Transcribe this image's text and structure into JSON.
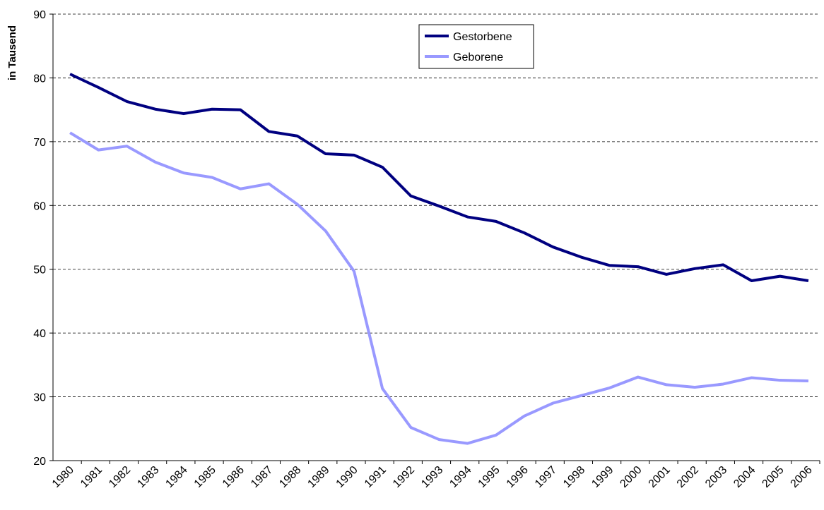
{
  "chart_data": {
    "type": "line",
    "ylabel": "in Tausend",
    "categories": [
      "1980",
      "1981",
      "1982",
      "1983",
      "1984",
      "1985",
      "1986",
      "1987",
      "1988",
      "1989",
      "1990",
      "1991",
      "1992",
      "1993",
      "1994",
      "1995",
      "1996",
      "1997",
      "1998",
      "1999",
      "2000",
      "2001",
      "2002",
      "2003",
      "2004",
      "2005",
      "2006"
    ],
    "series": [
      {
        "name": "Gestorbene",
        "color": "#000080",
        "values": [
          80.6,
          78.5,
          76.3,
          75.1,
          74.4,
          75.1,
          75.0,
          71.6,
          70.9,
          68.1,
          67.9,
          66.0,
          61.5,
          59.9,
          58.2,
          57.5,
          55.7,
          53.5,
          51.9,
          50.6,
          50.4,
          49.2,
          50.1,
          50.7,
          48.2,
          48.9,
          48.2
        ]
      },
      {
        "name": "Geborene",
        "color": "#9999ff",
        "values": [
          71.4,
          68.7,
          69.3,
          66.8,
          65.1,
          64.4,
          62.6,
          63.4,
          60.2,
          56.0,
          49.7,
          31.3,
          25.2,
          23.3,
          22.7,
          24.0,
          27.0,
          29.0,
          30.2,
          31.4,
          33.1,
          31.9,
          31.5,
          32.0,
          33.0,
          32.6,
          32.5
        ]
      }
    ],
    "ylim": [
      20,
      90
    ],
    "yticks": [
      20,
      30,
      40,
      50,
      60,
      70,
      80,
      90
    ],
    "grid": true,
    "legend": "upper center"
  }
}
